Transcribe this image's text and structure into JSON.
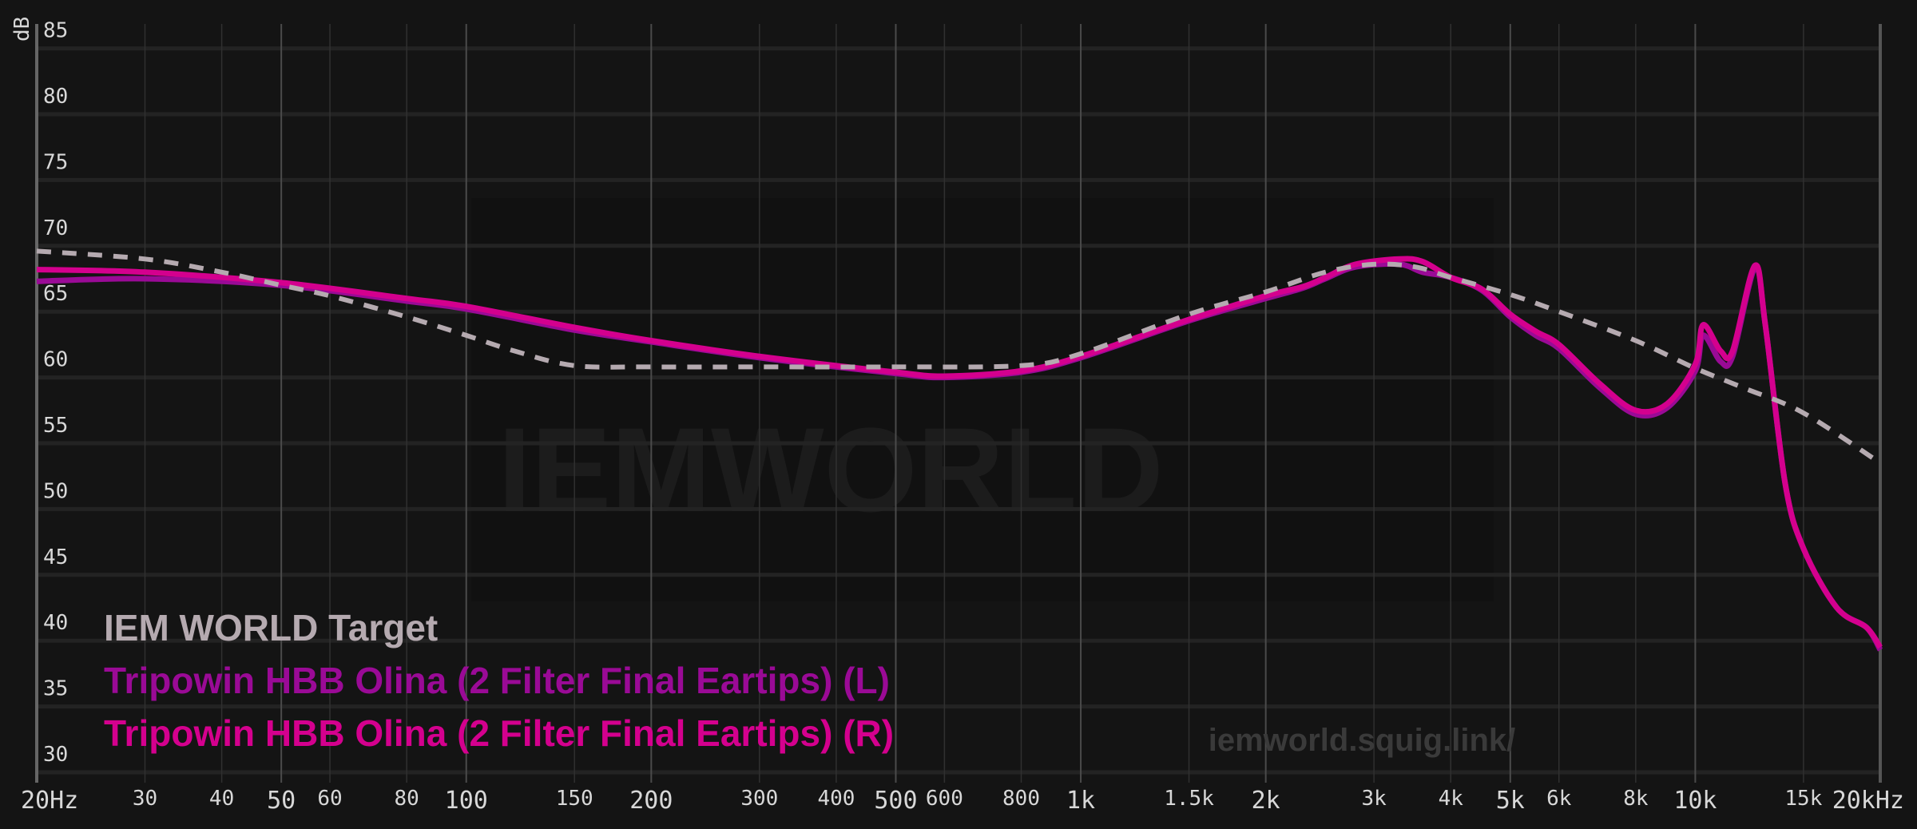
{
  "chart_data": {
    "type": "line",
    "title": "",
    "xlabel": "",
    "ylabel": "dB",
    "xscale": "log",
    "xlim": [
      20,
      20000
    ],
    "ylim": [
      28,
      86
    ],
    "grid": true,
    "legend_position": "bottom-left",
    "yticks": [
      85,
      80,
      75,
      70,
      65,
      60,
      55,
      50,
      45,
      40,
      35,
      30
    ],
    "xticks": [
      {
        "value": 20,
        "label": "20Hz",
        "major": true
      },
      {
        "value": 30,
        "label": "30"
      },
      {
        "value": 40,
        "label": "40"
      },
      {
        "value": 50,
        "label": "50",
        "major": true
      },
      {
        "value": 60,
        "label": "60"
      },
      {
        "value": 80,
        "label": "80"
      },
      {
        "value": 100,
        "label": "100",
        "major": true
      },
      {
        "value": 150,
        "label": "150"
      },
      {
        "value": 200,
        "label": "200",
        "major": true
      },
      {
        "value": 300,
        "label": "300"
      },
      {
        "value": 400,
        "label": "400"
      },
      {
        "value": 500,
        "label": "500",
        "major": true
      },
      {
        "value": 600,
        "label": "600"
      },
      {
        "value": 800,
        "label": "800"
      },
      {
        "value": 1000,
        "label": "1k",
        "major": true
      },
      {
        "value": 1500,
        "label": "1.5k"
      },
      {
        "value": 2000,
        "label": "2k",
        "major": true
      },
      {
        "value": 3000,
        "label": "3k"
      },
      {
        "value": 4000,
        "label": "4k"
      },
      {
        "value": 5000,
        "label": "5k",
        "major": true
      },
      {
        "value": 6000,
        "label": "6k"
      },
      {
        "value": 8000,
        "label": "8k"
      },
      {
        "value": 10000,
        "label": "10k",
        "major": true
      },
      {
        "value": 15000,
        "label": "15k"
      },
      {
        "value": 20000,
        "label": "20kHz",
        "major": true
      }
    ],
    "series": [
      {
        "name": "IEM WORLD Target",
        "color": "#b5aab0",
        "dashed": true,
        "x": [
          20,
          30,
          40,
          50,
          60,
          80,
          100,
          120,
          150,
          200,
          300,
          500,
          800,
          1000,
          1500,
          2000,
          2500,
          3000,
          3500,
          4000,
          5000,
          6000,
          8000,
          10000,
          12000,
          15000,
          20000
        ],
        "y": [
          69.6,
          69,
          68,
          67,
          66.2,
          64.6,
          63.2,
          62,
          60.9,
          60.8,
          60.8,
          60.8,
          60.9,
          61.8,
          64.8,
          66.5,
          68,
          68.6,
          68.4,
          67.6,
          66.3,
          65,
          62.8,
          60.7,
          59.2,
          57.3,
          53.5
        ]
      },
      {
        "name": "Tripowin HBB Olina (2 Filter Final Eartips) (L)",
        "color": "#9a0a96",
        "x": [
          20,
          30,
          50,
          80,
          100,
          150,
          200,
          300,
          500,
          600,
          800,
          1000,
          1500,
          2000,
          2300,
          2500,
          2800,
          3300,
          3600,
          4000,
          4500,
          5000,
          5500,
          6000,
          7000,
          8000,
          9000,
          10000,
          10300,
          11000,
          11500,
          12500,
          13000,
          14000,
          15000,
          17000,
          19000,
          20000
        ],
        "y": [
          67.3,
          67.5,
          67,
          65.8,
          65.2,
          63.6,
          62.7,
          61.5,
          60.3,
          60,
          60.4,
          61.5,
          64.3,
          66,
          66.8,
          67.5,
          68.4,
          68.6,
          68,
          67.6,
          66.6,
          64.6,
          63.2,
          62.2,
          59.2,
          57.2,
          57.7,
          60.5,
          63.2,
          61.2,
          61.6,
          68.3,
          64,
          52,
          47,
          42.5,
          41,
          39.3
        ]
      },
      {
        "name": "Tripowin HBB Olina (2 Filter Final Eartips) (R)",
        "color": "#d4008e",
        "x": [
          20,
          30,
          50,
          80,
          100,
          150,
          200,
          300,
          500,
          600,
          800,
          1000,
          1500,
          2000,
          2300,
          2500,
          2800,
          3300,
          3600,
          4000,
          4500,
          5000,
          5500,
          6000,
          7000,
          8000,
          9000,
          10000,
          10300,
          11000,
          11500,
          12500,
          13000,
          14000,
          15000,
          17000,
          19000,
          20000
        ],
        "y": [
          68.2,
          68,
          67.2,
          66,
          65.4,
          63.8,
          62.8,
          61.6,
          60.4,
          60.1,
          60.5,
          61.6,
          64.4,
          66.2,
          66.9,
          67.6,
          68.6,
          69,
          68.8,
          67.6,
          66.7,
          64.8,
          63.5,
          62.5,
          59.5,
          57.5,
          58,
          61,
          64,
          62,
          62,
          68.5,
          64,
          52,
          47,
          42.5,
          41,
          39.5
        ]
      }
    ]
  },
  "watermark": {
    "brand": "IEMWORLD",
    "url": "iemworld.squig.link/"
  }
}
